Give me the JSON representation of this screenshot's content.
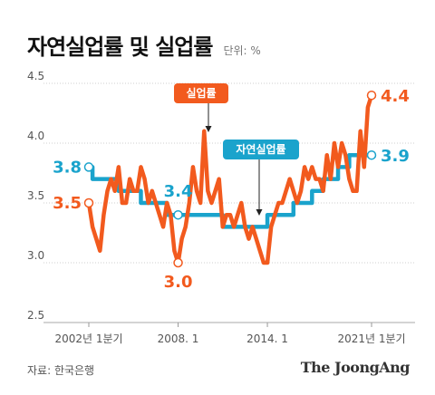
{
  "title": "자연실업률 및 실업률",
  "unit": "단위: %",
  "source": "자료: 한국은행",
  "brand": "The JoongAng",
  "colors": {
    "unemployment": "#f25a1e",
    "natural": "#1aa3cc",
    "axis": "#999999"
  },
  "chart_data": {
    "type": "line",
    "title": "자연실업률 및 실업률",
    "ylim": [
      2.5,
      4.5
    ],
    "yticks": [
      "2.5",
      "3.0",
      "3.5",
      "4.0",
      "4.5"
    ],
    "xticks": [
      {
        "label": "2002년 1분기",
        "index": 0
      },
      {
        "label": "2008. 1",
        "index": 24
      },
      {
        "label": "2014. 1",
        "index": 48
      },
      {
        "label": "2021년 1분기",
        "index": 76
      }
    ],
    "x_start": "2002 Q1",
    "grid": true,
    "series": [
      {
        "name": "실업률",
        "color": "#f25a1e",
        "values": [
          3.5,
          3.3,
          3.2,
          3.1,
          3.4,
          3.6,
          3.7,
          3.6,
          3.8,
          3.5,
          3.5,
          3.7,
          3.6,
          3.6,
          3.8,
          3.7,
          3.5,
          3.6,
          3.5,
          3.4,
          3.3,
          3.5,
          3.4,
          3.1,
          3.0,
          3.2,
          3.3,
          3.5,
          3.8,
          3.6,
          3.5,
          4.1,
          3.6,
          3.5,
          3.6,
          3.7,
          3.3,
          3.4,
          3.4,
          3.3,
          3.4,
          3.5,
          3.3,
          3.2,
          3.3,
          3.2,
          3.1,
          3.0,
          3.0,
          3.3,
          3.4,
          3.5,
          3.5,
          3.6,
          3.7,
          3.6,
          3.5,
          3.6,
          3.8,
          3.7,
          3.8,
          3.7,
          3.7,
          3.6,
          3.9,
          3.7,
          4.0,
          3.8,
          4.0,
          3.9,
          3.7,
          3.6,
          3.6,
          4.1,
          3.8,
          4.3,
          4.4
        ],
        "labels": [
          {
            "text": "3.5",
            "index": 0,
            "value": 3.5
          },
          {
            "text": "3.0",
            "index": 24,
            "value": 3.0
          },
          {
            "text": "4.4",
            "index": 76,
            "value": 4.4
          }
        ],
        "callout": {
          "text": "실업률",
          "index": 31
        }
      },
      {
        "name": "자연실업률",
        "color": "#1aa3cc",
        "values": [
          3.8,
          3.7,
          3.7,
          3.7,
          3.7,
          3.7,
          3.7,
          3.7,
          3.6,
          3.6,
          3.6,
          3.6,
          3.6,
          3.6,
          3.5,
          3.5,
          3.5,
          3.5,
          3.5,
          3.5,
          3.5,
          3.4,
          3.4,
          3.4,
          3.4,
          3.4,
          3.4,
          3.4,
          3.4,
          3.4,
          3.4,
          3.4,
          3.4,
          3.4,
          3.4,
          3.4,
          3.3,
          3.3,
          3.3,
          3.3,
          3.3,
          3.3,
          3.3,
          3.3,
          3.3,
          3.3,
          3.3,
          3.3,
          3.4,
          3.4,
          3.4,
          3.4,
          3.4,
          3.4,
          3.4,
          3.5,
          3.5,
          3.5,
          3.5,
          3.5,
          3.6,
          3.6,
          3.6,
          3.7,
          3.7,
          3.7,
          3.7,
          3.8,
          3.8,
          3.8,
          3.9,
          3.9,
          3.9,
          3.9,
          3.9,
          3.9,
          3.9
        ],
        "labels": [
          {
            "text": "3.8",
            "index": 0,
            "value": 3.8
          },
          {
            "text": "3.4",
            "index": 24,
            "value": 3.4
          },
          {
            "text": "3.9",
            "index": 76,
            "value": 3.9
          }
        ],
        "callout": {
          "text": "자연실업률",
          "index": 46
        }
      }
    ]
  }
}
